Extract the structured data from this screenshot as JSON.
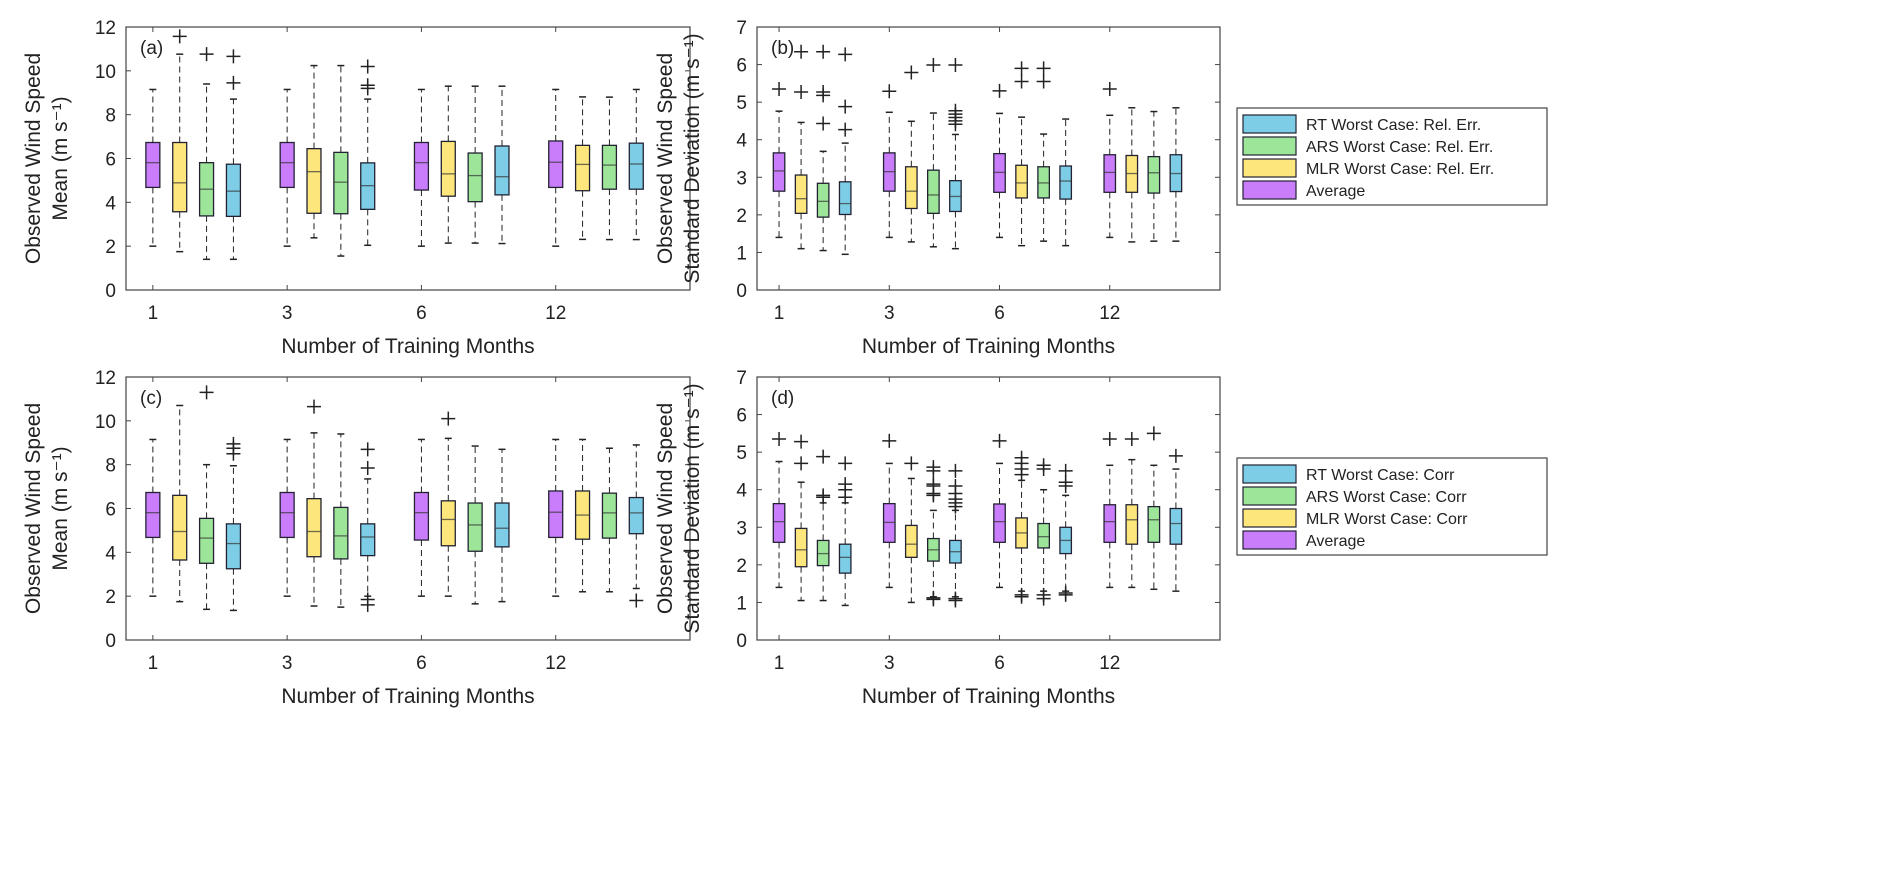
{
  "colors": {
    "Average": "#c97dfb",
    "MLR": "#fde67c",
    "ARS": "#9de699",
    "RT": "#7ecde6"
  },
  "chart_data": [
    {
      "type": "boxplot",
      "panel_label": "(a)",
      "xlabel": "Number of Training Months",
      "ylabel": [
        "Observed Wind Speed",
        "Mean (m s⁻¹)"
      ],
      "ylim": [
        0,
        12
      ],
      "yticks": [
        0,
        2,
        4,
        6,
        8,
        10,
        12
      ],
      "categories": [
        "1",
        "3",
        "6",
        "12"
      ],
      "series": [
        {
          "key": "Average",
          "stats": [
            {
              "low": 2.0,
              "q1": 4.68,
              "med": 5.81,
              "q3": 6.73,
              "high": 9.15,
              "outliers": []
            },
            {
              "low": 2.0,
              "q1": 4.68,
              "med": 5.81,
              "q3": 6.73,
              "high": 9.15,
              "outliers": []
            },
            {
              "low": 2.0,
              "q1": 4.56,
              "med": 5.81,
              "q3": 6.73,
              "high": 9.15,
              "outliers": []
            },
            {
              "low": 2.0,
              "q1": 4.68,
              "med": 5.83,
              "q3": 6.8,
              "high": 9.15,
              "outliers": []
            }
          ]
        },
        {
          "key": "MLR",
          "stats": [
            {
              "low": 1.75,
              "q1": 3.57,
              "med": 4.89,
              "q3": 6.73,
              "high": 10.76,
              "outliers": [
                11.57
              ]
            },
            {
              "low": 2.38,
              "q1": 3.5,
              "med": 5.4,
              "q3": 6.45,
              "high": 10.24,
              "outliers": []
            },
            {
              "low": 2.14,
              "q1": 4.28,
              "med": 5.3,
              "q3": 6.78,
              "high": 9.3,
              "outliers": []
            },
            {
              "low": 2.31,
              "q1": 4.53,
              "med": 5.73,
              "q3": 6.6,
              "high": 8.81,
              "outliers": []
            }
          ]
        },
        {
          "key": "ARS",
          "stats": [
            {
              "low": 1.4,
              "q1": 3.38,
              "med": 4.6,
              "q3": 5.81,
              "high": 9.4,
              "outliers": [
                10.76
              ]
            },
            {
              "low": 1.55,
              "q1": 3.48,
              "med": 4.92,
              "q3": 6.28,
              "high": 10.24,
              "outliers": []
            },
            {
              "low": 2.14,
              "q1": 4.03,
              "med": 5.22,
              "q3": 6.25,
              "high": 9.3,
              "outliers": []
            },
            {
              "low": 2.3,
              "q1": 4.6,
              "med": 5.7,
              "q3": 6.6,
              "high": 8.8,
              "outliers": []
            }
          ]
        },
        {
          "key": "RT",
          "stats": [
            {
              "low": 1.4,
              "q1": 3.36,
              "med": 4.51,
              "q3": 5.74,
              "high": 8.71,
              "outliers": [
                9.45,
                10.66
              ]
            },
            {
              "low": 2.04,
              "q1": 3.68,
              "med": 4.76,
              "q3": 5.8,
              "high": 8.71,
              "outliers": [
                9.2,
                9.34,
                10.2
              ]
            },
            {
              "low": 2.12,
              "q1": 4.34,
              "med": 5.17,
              "q3": 6.57,
              "high": 9.3,
              "outliers": []
            },
            {
              "low": 2.3,
              "q1": 4.6,
              "med": 5.75,
              "q3": 6.7,
              "high": 9.15,
              "outliers": []
            }
          ]
        }
      ],
      "legend": [
        "RT Worst Case: Rel. Err.",
        "ARS Worst Case: Rel. Err.",
        "MLR Worst Case: Rel. Err.",
        "Average"
      ],
      "legend_keys": [
        "RT",
        "ARS",
        "MLR",
        "Average"
      ]
    },
    {
      "type": "boxplot",
      "panel_label": "(b)",
      "xlabel": "Number of Training Months",
      "ylabel": [
        "Observed Wind Speed",
        "Standard Deviation (m s⁻¹)"
      ],
      "ylim": [
        0,
        7
      ],
      "yticks": [
        0,
        1,
        2,
        3,
        4,
        5,
        6,
        7
      ],
      "categories": [
        "1",
        "3",
        "6",
        "12"
      ],
      "series": [
        {
          "key": "Average",
          "stats": [
            {
              "low": 1.4,
              "q1": 2.63,
              "med": 3.17,
              "q3": 3.65,
              "high": 4.76,
              "outliers": [
                5.35
              ]
            },
            {
              "low": 1.4,
              "q1": 2.63,
              "med": 3.15,
              "q3": 3.65,
              "high": 4.73,
              "outliers": [
                5.29
              ]
            },
            {
              "low": 1.4,
              "q1": 2.6,
              "med": 3.13,
              "q3": 3.63,
              "high": 4.7,
              "outliers": [
                5.3
              ]
            },
            {
              "low": 1.4,
              "q1": 2.6,
              "med": 3.13,
              "q3": 3.6,
              "high": 4.65,
              "outliers": [
                5.35
              ]
            }
          ]
        },
        {
          "key": "MLR",
          "stats": [
            {
              "low": 1.1,
              "q1": 2.04,
              "med": 2.43,
              "q3": 3.06,
              "high": 4.46,
              "outliers": [
                5.27,
                6.34
              ]
            },
            {
              "low": 1.28,
              "q1": 2.17,
              "med": 2.63,
              "q3": 3.28,
              "high": 4.49,
              "outliers": [
                5.79
              ]
            },
            {
              "low": 1.18,
              "q1": 2.45,
              "med": 2.85,
              "q3": 3.32,
              "high": 4.6,
              "outliers": [
                5.55,
                5.9
              ]
            },
            {
              "low": 1.28,
              "q1": 2.6,
              "med": 3.1,
              "q3": 3.58,
              "high": 4.85,
              "outliers": []
            }
          ]
        },
        {
          "key": "ARS",
          "stats": [
            {
              "low": 1.05,
              "q1": 1.94,
              "med": 2.36,
              "q3": 2.84,
              "high": 3.69,
              "outliers": [
                4.43,
                5.18,
                5.27,
                6.34
              ]
            },
            {
              "low": 1.15,
              "q1": 2.04,
              "med": 2.53,
              "q3": 3.19,
              "high": 4.71,
              "outliers": [
                5.99
              ]
            },
            {
              "low": 1.3,
              "q1": 2.45,
              "med": 2.85,
              "q3": 3.28,
              "high": 4.15,
              "outliers": [
                5.55,
                5.9
              ]
            },
            {
              "low": 1.3,
              "q1": 2.58,
              "med": 3.12,
              "q3": 3.55,
              "high": 4.75,
              "outliers": []
            }
          ]
        },
        {
          "key": "RT",
          "stats": [
            {
              "low": 0.95,
              "q1": 2.01,
              "med": 2.3,
              "q3": 2.88,
              "high": 3.91,
              "outliers": [
                4.27,
                4.88,
                6.27
              ]
            },
            {
              "low": 1.1,
              "q1": 2.09,
              "med": 2.49,
              "q3": 2.91,
              "high": 4.14,
              "outliers": [
                4.41,
                4.5,
                4.59,
                4.68,
                4.77,
                5.99
              ]
            },
            {
              "low": 1.18,
              "q1": 2.42,
              "med": 2.9,
              "q3": 3.3,
              "high": 4.55,
              "outliers": []
            },
            {
              "low": 1.3,
              "q1": 2.62,
              "med": 3.1,
              "q3": 3.6,
              "high": 4.85,
              "outliers": []
            }
          ]
        }
      ]
    },
    {
      "type": "boxplot",
      "panel_label": "(c)",
      "xlabel": "Number of Training Months",
      "ylabel": [
        "Observed Wind Speed",
        "Mean (m s⁻¹)"
      ],
      "ylim": [
        0,
        12
      ],
      "yticks": [
        0,
        2,
        4,
        6,
        8,
        10,
        12
      ],
      "categories": [
        "1",
        "3",
        "6",
        "12"
      ],
      "series": [
        {
          "key": "Average",
          "stats": [
            {
              "low": 2.0,
              "q1": 4.68,
              "med": 5.81,
              "q3": 6.73,
              "high": 9.15,
              "outliers": []
            },
            {
              "low": 2.0,
              "q1": 4.68,
              "med": 5.81,
              "q3": 6.73,
              "high": 9.15,
              "outliers": []
            },
            {
              "low": 2.0,
              "q1": 4.56,
              "med": 5.81,
              "q3": 6.73,
              "high": 9.15,
              "outliers": []
            },
            {
              "low": 2.0,
              "q1": 4.68,
              "med": 5.83,
              "q3": 6.8,
              "high": 9.15,
              "outliers": []
            }
          ]
        },
        {
          "key": "MLR",
          "stats": [
            {
              "low": 1.75,
              "q1": 3.65,
              "med": 4.95,
              "q3": 6.6,
              "high": 10.7,
              "outliers": []
            },
            {
              "low": 1.55,
              "q1": 3.8,
              "med": 4.95,
              "q3": 6.45,
              "high": 9.45,
              "outliers": [
                10.65
              ]
            },
            {
              "low": 2.0,
              "q1": 4.3,
              "med": 5.5,
              "q3": 6.35,
              "high": 9.2,
              "outliers": [
                10.1
              ]
            },
            {
              "low": 2.2,
              "q1": 4.6,
              "med": 5.7,
              "q3": 6.8,
              "high": 9.15,
              "outliers": []
            }
          ]
        },
        {
          "key": "ARS",
          "stats": [
            {
              "low": 1.4,
              "q1": 3.5,
              "med": 4.65,
              "q3": 5.55,
              "high": 8.0,
              "outliers": [
                11.3
              ]
            },
            {
              "low": 1.5,
              "q1": 3.7,
              "med": 4.75,
              "q3": 6.05,
              "high": 9.4,
              "outliers": []
            },
            {
              "low": 1.65,
              "q1": 4.05,
              "med": 5.25,
              "q3": 6.25,
              "high": 8.85,
              "outliers": []
            },
            {
              "low": 2.2,
              "q1": 4.65,
              "med": 5.8,
              "q3": 6.7,
              "high": 8.75,
              "outliers": []
            }
          ]
        },
        {
          "key": "RT",
          "stats": [
            {
              "low": 1.35,
              "q1": 3.25,
              "med": 4.4,
              "q3": 5.3,
              "high": 7.95,
              "outliers": [
                8.5,
                8.75,
                8.95
              ]
            },
            {
              "low": 2.0,
              "q1": 3.85,
              "med": 4.7,
              "q3": 5.3,
              "high": 7.35,
              "outliers": [
                1.6,
                1.85,
                7.85,
                8.7
              ]
            },
            {
              "low": 1.75,
              "q1": 4.25,
              "med": 5.1,
              "q3": 6.25,
              "high": 8.7,
              "outliers": []
            },
            {
              "low": 2.35,
              "q1": 4.85,
              "med": 5.8,
              "q3": 6.5,
              "high": 8.9,
              "outliers": [
                1.8
              ]
            }
          ]
        }
      ]
    },
    {
      "type": "boxplot",
      "panel_label": "(d)",
      "xlabel": "Number of Training Months",
      "ylabel": [
        "Observed Wind Speed",
        "Standard Deviation (m s⁻¹)"
      ],
      "ylim": [
        0,
        7
      ],
      "yticks": [
        0,
        1,
        2,
        3,
        4,
        5,
        6,
        7
      ],
      "categories": [
        "1",
        "3",
        "6",
        "12"
      ],
      "series": [
        {
          "key": "Average",
          "stats": [
            {
              "low": 1.4,
              "q1": 2.6,
              "med": 3.15,
              "q3": 3.63,
              "high": 4.75,
              "outliers": [
                5.35
              ]
            },
            {
              "low": 1.4,
              "q1": 2.6,
              "med": 3.13,
              "q3": 3.63,
              "high": 4.7,
              "outliers": [
                5.3
              ]
            },
            {
              "low": 1.4,
              "q1": 2.6,
              "med": 3.15,
              "q3": 3.62,
              "high": 4.7,
              "outliers": [
                5.3
              ]
            },
            {
              "low": 1.4,
              "q1": 2.6,
              "med": 3.15,
              "q3": 3.6,
              "high": 4.65,
              "outliers": [
                5.35
              ]
            }
          ]
        },
        {
          "key": "MLR",
          "stats": [
            {
              "low": 1.05,
              "q1": 1.95,
              "med": 2.4,
              "q3": 2.97,
              "high": 4.2,
              "outliers": [
                4.7,
                5.28
              ]
            },
            {
              "low": 1.0,
              "q1": 2.2,
              "med": 2.55,
              "q3": 3.05,
              "high": 4.3,
              "outliers": [
                4.7
              ]
            },
            {
              "low": 1.3,
              "q1": 2.45,
              "med": 2.85,
              "q3": 3.25,
              "high": 4.25,
              "outliers": [
                1.15,
                1.2,
                4.4,
                4.55,
                4.7,
                4.85
              ]
            },
            {
              "low": 1.4,
              "q1": 2.55,
              "med": 3.2,
              "q3": 3.6,
              "high": 4.8,
              "outliers": [
                5.35
              ]
            }
          ]
        },
        {
          "key": "ARS",
          "stats": [
            {
              "low": 1.05,
              "q1": 1.98,
              "med": 2.3,
              "q3": 2.65,
              "high": 3.65,
              "outliers": [
                3.8,
                3.85,
                4.88
              ]
            },
            {
              "low": 1.15,
              "q1": 2.1,
              "med": 2.4,
              "q3": 2.7,
              "high": 3.45,
              "outliers": [
                1.08,
                1.12,
                3.85,
                3.9,
                4.1,
                4.15,
                4.5,
                4.6
              ]
            },
            {
              "low": 1.3,
              "q1": 2.45,
              "med": 2.75,
              "q3": 3.1,
              "high": 4.0,
              "outliers": [
                1.1,
                1.2,
                4.55,
                4.65
              ]
            },
            {
              "low": 1.35,
              "q1": 2.6,
              "med": 3.2,
              "q3": 3.55,
              "high": 4.65,
              "outliers": [
                5.5
              ]
            }
          ]
        },
        {
          "key": "RT",
          "stats": [
            {
              "low": 0.92,
              "q1": 1.78,
              "med": 2.2,
              "q3": 2.55,
              "high": 3.65,
              "outliers": [
                3.8,
                4.0,
                4.15,
                4.7
              ]
            },
            {
              "low": 1.15,
              "q1": 2.05,
              "med": 2.35,
              "q3": 2.65,
              "high": 3.45,
              "outliers": [
                1.05,
                1.1,
                3.55,
                3.65,
                3.75,
                3.9,
                4.1,
                4.5
              ]
            },
            {
              "low": 1.3,
              "q1": 2.3,
              "med": 2.65,
              "q3": 3.0,
              "high": 3.85,
              "outliers": [
                1.2,
                1.25,
                4.1,
                4.2,
                4.5
              ]
            },
            {
              "low": 1.3,
              "q1": 2.55,
              "med": 3.1,
              "q3": 3.5,
              "high": 4.55,
              "outliers": [
                4.9
              ]
            }
          ]
        }
      ],
      "legend": [
        "RT Worst Case: Corr",
        "ARS Worst Case: Corr",
        "MLR Worst Case: Corr",
        "Average"
      ],
      "legend_keys": [
        "RT",
        "ARS",
        "MLR",
        "Average"
      ]
    }
  ]
}
